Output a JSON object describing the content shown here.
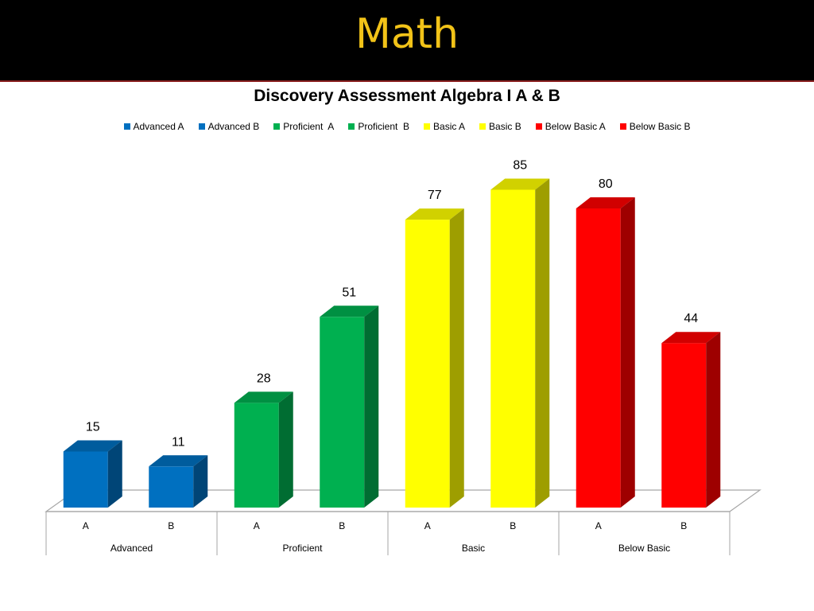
{
  "header": {
    "title": "Math"
  },
  "chart_data": {
    "type": "bar",
    "title": "Discovery Assessment Algebra I A & B",
    "xlabel": "",
    "ylabel": "",
    "groups": [
      {
        "label": "Advanced",
        "categories": [
          "A",
          "B"
        ]
      },
      {
        "label": "Proficient",
        "categories": [
          "A",
          "B"
        ]
      },
      {
        "label": "Basic",
        "categories": [
          "A",
          "B"
        ]
      },
      {
        "label": "Below Basic",
        "categories": [
          "A",
          "B"
        ]
      }
    ],
    "series": [
      {
        "name": "Advanced A",
        "value": 15,
        "color": "#0070c0"
      },
      {
        "name": "Advanced B",
        "value": 11,
        "color": "#0070c0"
      },
      {
        "name": "Proficient  A",
        "value": 28,
        "color": "#00b050"
      },
      {
        "name": "Proficient  B",
        "value": 51,
        "color": "#00b050"
      },
      {
        "name": "Basic A",
        "value": 77,
        "color": "#ffff00"
      },
      {
        "name": "Basic B",
        "value": 85,
        "color": "#ffff00"
      },
      {
        "name": "Below Basic A",
        "value": 80,
        "color": "#ff0000"
      },
      {
        "name": "Below Basic B",
        "value": 44,
        "color": "#ff0000"
      }
    ],
    "ylim": [
      0,
      100
    ],
    "grid": false,
    "legend_position": "top",
    "style": "3d-column"
  }
}
